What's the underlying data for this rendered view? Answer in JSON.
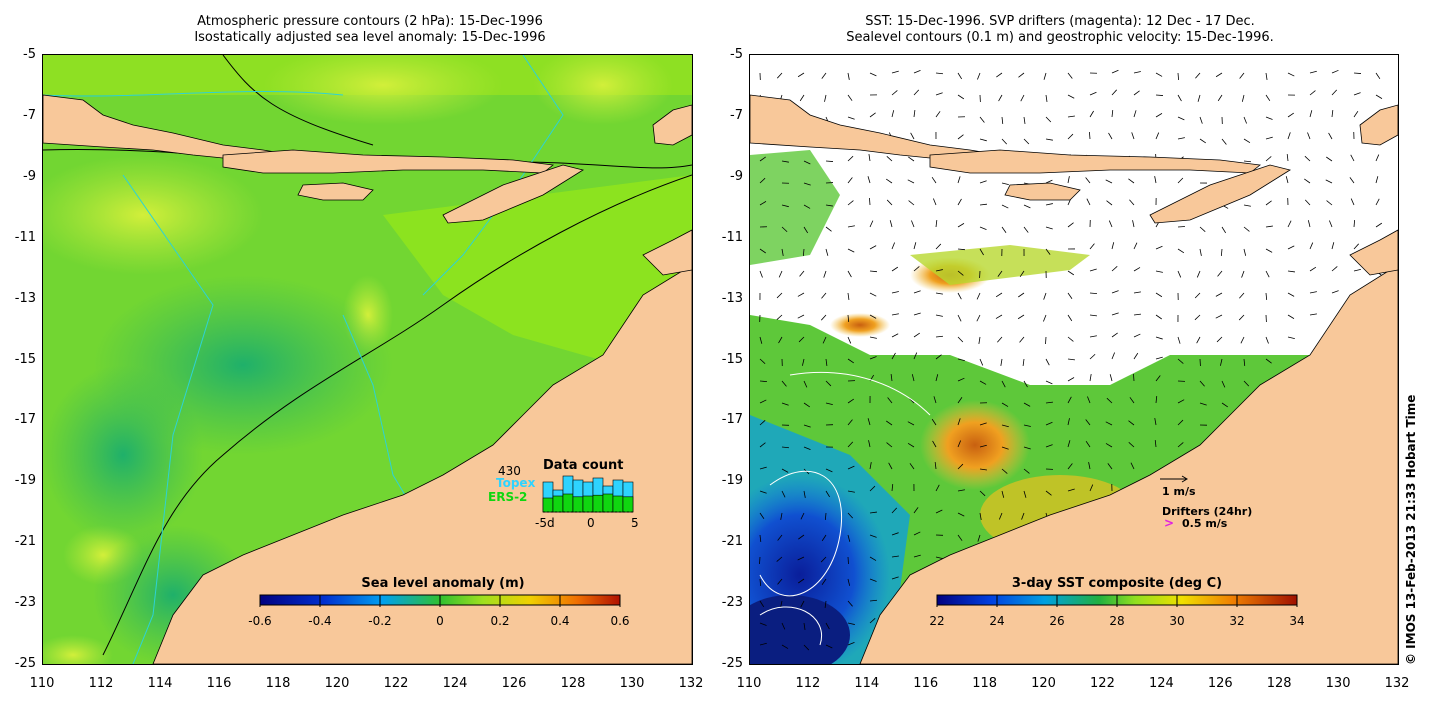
{
  "left_panel": {
    "title_line1": "Atmospheric pressure contours (2 hPa): 15-Dec-1996",
    "title_line2": "Isostatically adjusted sea level anomaly: 15-Dec-1996",
    "colorbar": {
      "title": "Sea level anomaly (m)",
      "ticks": [
        "-0.6",
        "-0.4",
        "-0.2",
        "0",
        "0.2",
        "0.4",
        "0.6"
      ]
    },
    "data_count": {
      "title": "Data count",
      "max": "430",
      "topex_label": "Topex",
      "ers_label": "ERS-2",
      "axis_left": "-5d",
      "axis_mid": "0",
      "axis_right": "5",
      "topex_values": [
        0.75,
        0.55,
        0.9,
        0.8,
        0.75,
        0.85,
        0.65,
        0.8,
        0.75
      ],
      "ers_values": [
        0.35,
        0.4,
        0.45,
        0.38,
        0.4,
        0.42,
        0.45,
        0.4,
        0.38
      ]
    }
  },
  "right_panel": {
    "title_line1": "SST: 15-Dec-1996. SVP drifters (magenta): 12 Dec - 17 Dec.",
    "title_line2": "Sealevel contours (0.1 m) and geostrophic velocity: 15-Dec-1996.",
    "colorbar": {
      "title": "3-day SST composite (deg C)",
      "ticks": [
        "22",
        "24",
        "26",
        "28",
        "30",
        "32",
        "34"
      ]
    },
    "velocity_scale_label": "1 m/s",
    "drifters_label": "Drifters (24hr)",
    "drifter_scale_label": "0.5 m/s"
  },
  "axes": {
    "y_ticks": [
      "-5",
      "-7",
      "-9",
      "-11",
      "-13",
      "-15",
      "-17",
      "-19",
      "-21",
      "-23",
      "-25"
    ],
    "x_ticks": [
      "110",
      "112",
      "114",
      "116",
      "118",
      "120",
      "122",
      "124",
      "126",
      "128",
      "130",
      "132"
    ]
  },
  "credit": "© IMOS 13-Feb-2013 21:33 Hobart Time",
  "colors": {
    "land": "#f8c89a",
    "ocean_green": "#6fd236",
    "contour_cyan": "#2ed3d3",
    "drifter_magenta": "#e020e0"
  }
}
